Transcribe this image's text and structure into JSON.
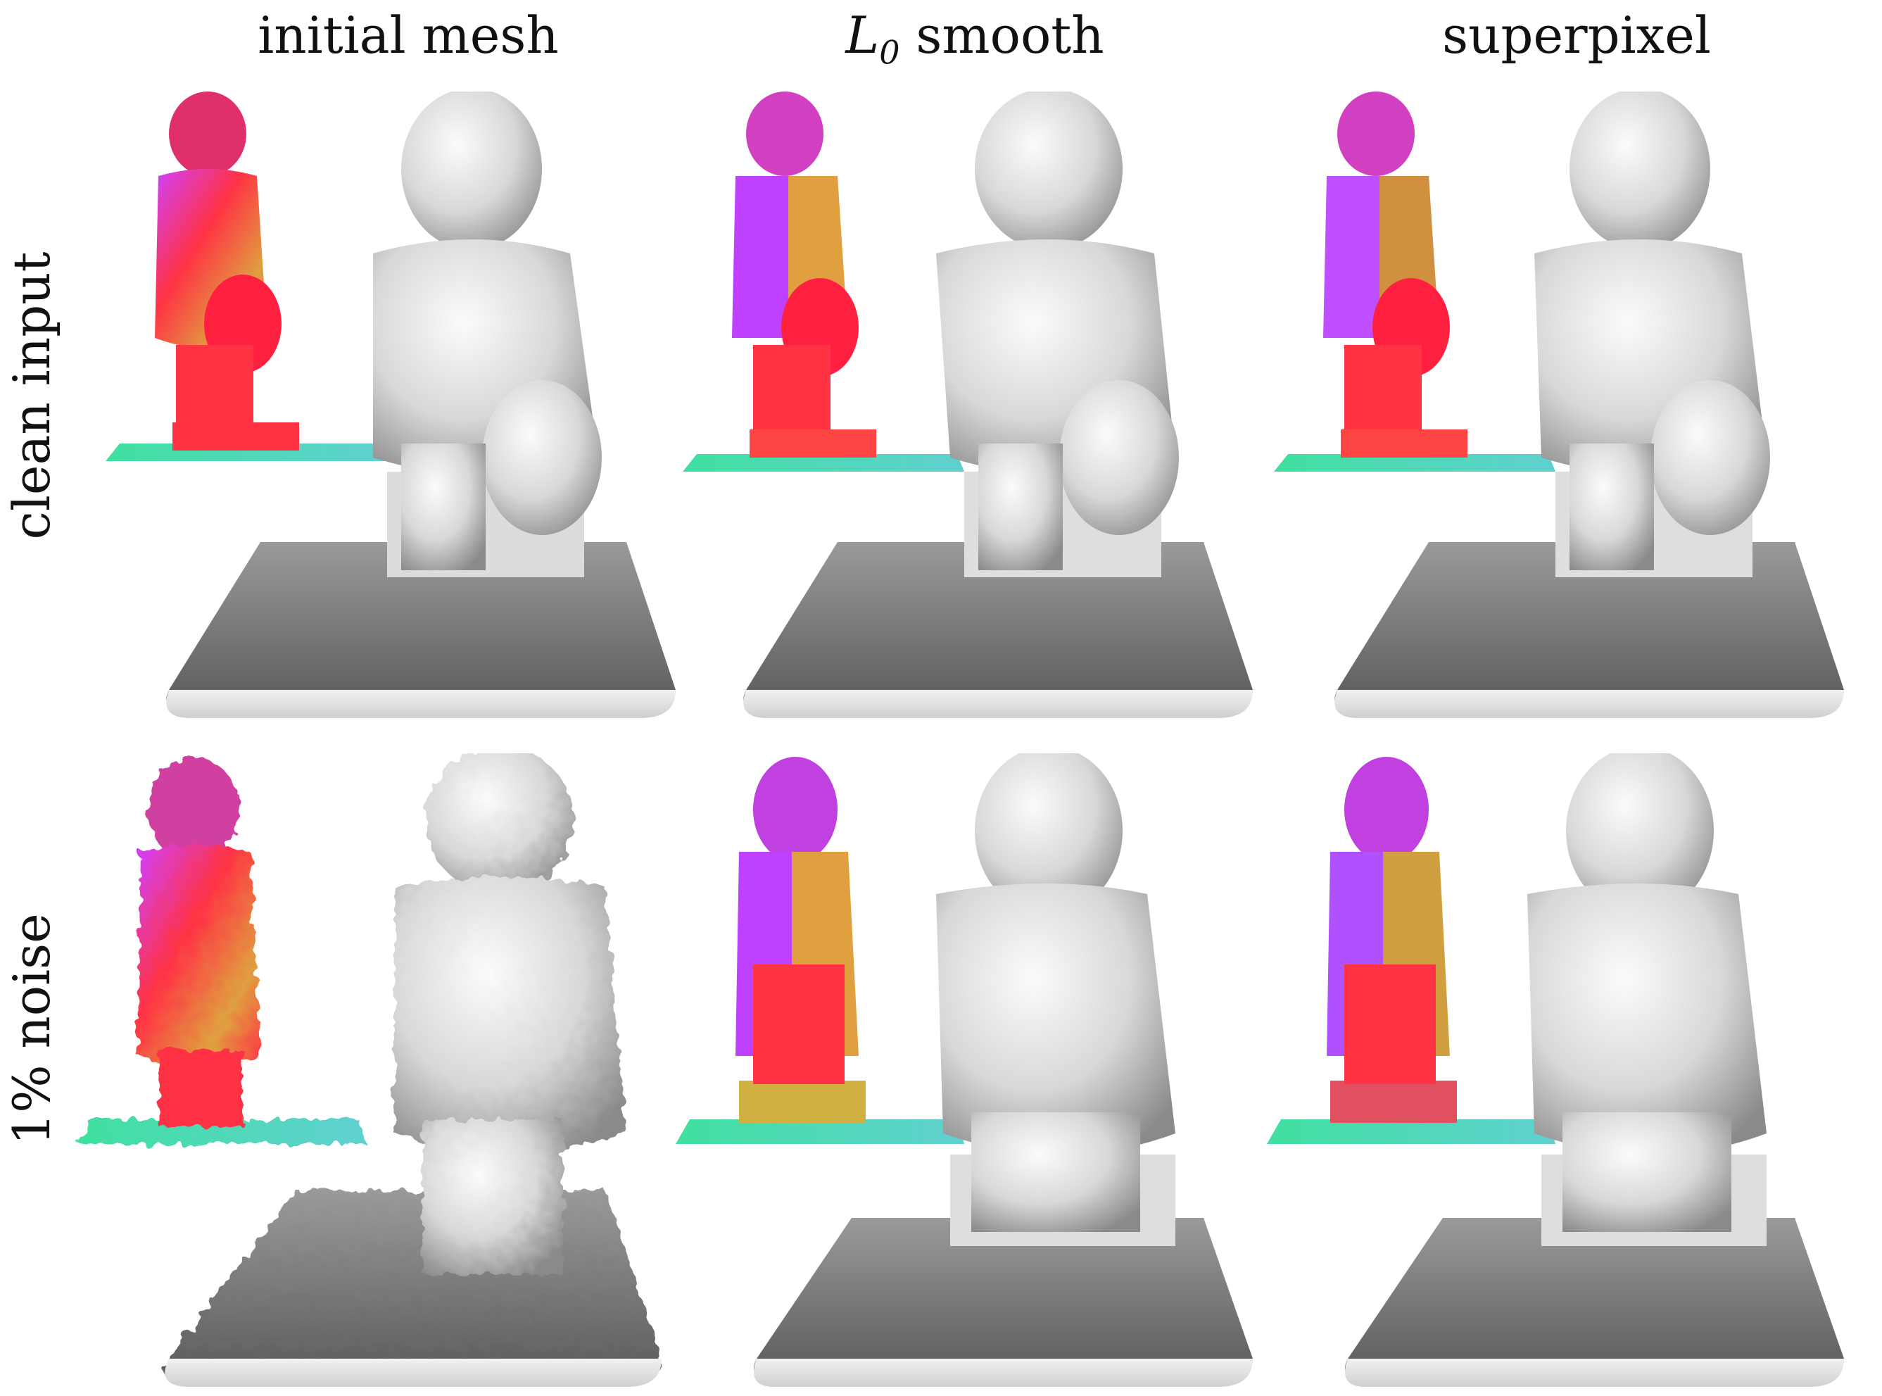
{
  "columns": [
    {
      "id": "initial",
      "label": "initial mesh"
    },
    {
      "id": "l0",
      "label_prefix": "L",
      "label_sub": "0",
      "label_suffix": " smooth"
    },
    {
      "id": "superpixel",
      "label": "superpixel"
    }
  ],
  "rows": [
    {
      "id": "clean",
      "label": "clean input"
    },
    {
      "id": "noise",
      "label": "1% noise"
    }
  ],
  "colors": {
    "mesh_light": "#f4f4f4",
    "mesh_mid": "#bdbdbd",
    "mesh_dark": "#555555",
    "normal_red": "#ff3344",
    "normal_magenta": "#d040ff",
    "normal_orange": "#e0a040",
    "normal_green": "#40e0a0"
  }
}
